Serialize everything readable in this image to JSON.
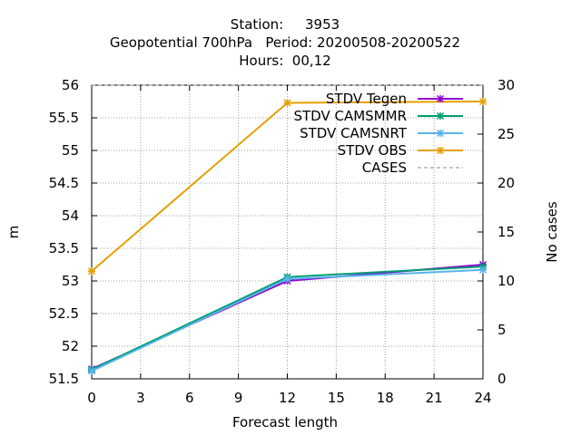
{
  "chart_data": {
    "type": "line",
    "title_lines": [
      "Station:     3953",
      "Geopotential 700hPa   Period: 20200508-20200522",
      "Hours:  00,12"
    ],
    "xlabel": "Forecast length",
    "ylabel": "m",
    "y2label": "No cases",
    "xlim": [
      0,
      24
    ],
    "ylim": [
      51.5,
      56
    ],
    "y2lim": [
      0,
      30
    ],
    "xticks": [
      "0",
      "3",
      "6",
      "9",
      "12",
      "15",
      "18",
      "21",
      "24"
    ],
    "yticks": [
      "51.5",
      "52",
      "52.5",
      "53",
      "53.5",
      "54",
      "54.5",
      "55",
      "55.5",
      "56"
    ],
    "y2ticks": [
      "0",
      "5",
      "10",
      "15",
      "20",
      "25",
      "30"
    ],
    "grid": true,
    "legend_position": "top-right",
    "x": [
      0,
      12,
      24
    ],
    "series": [
      {
        "name": "STDV Tegen",
        "color": "#9400d3",
        "marker": "x-star",
        "values": [
          51.65,
          53.0,
          53.25
        ]
      },
      {
        "name": "STDV CAMSMMR",
        "color": "#009e73",
        "marker": "x-star",
        "values": [
          51.64,
          53.06,
          53.22
        ]
      },
      {
        "name": "STDV CAMSNRT",
        "color": "#56b4e9",
        "marker": "x-star",
        "values": [
          51.62,
          53.03,
          53.17
        ]
      },
      {
        "name": "STDV OBS",
        "color": "#e69f00",
        "marker": "x-star",
        "values": [
          53.15,
          55.73,
          55.75
        ]
      }
    ],
    "cases": {
      "name": "CASES",
      "color": "#888888",
      "axis": "y2",
      "values": [
        30,
        30,
        30
      ]
    }
  }
}
